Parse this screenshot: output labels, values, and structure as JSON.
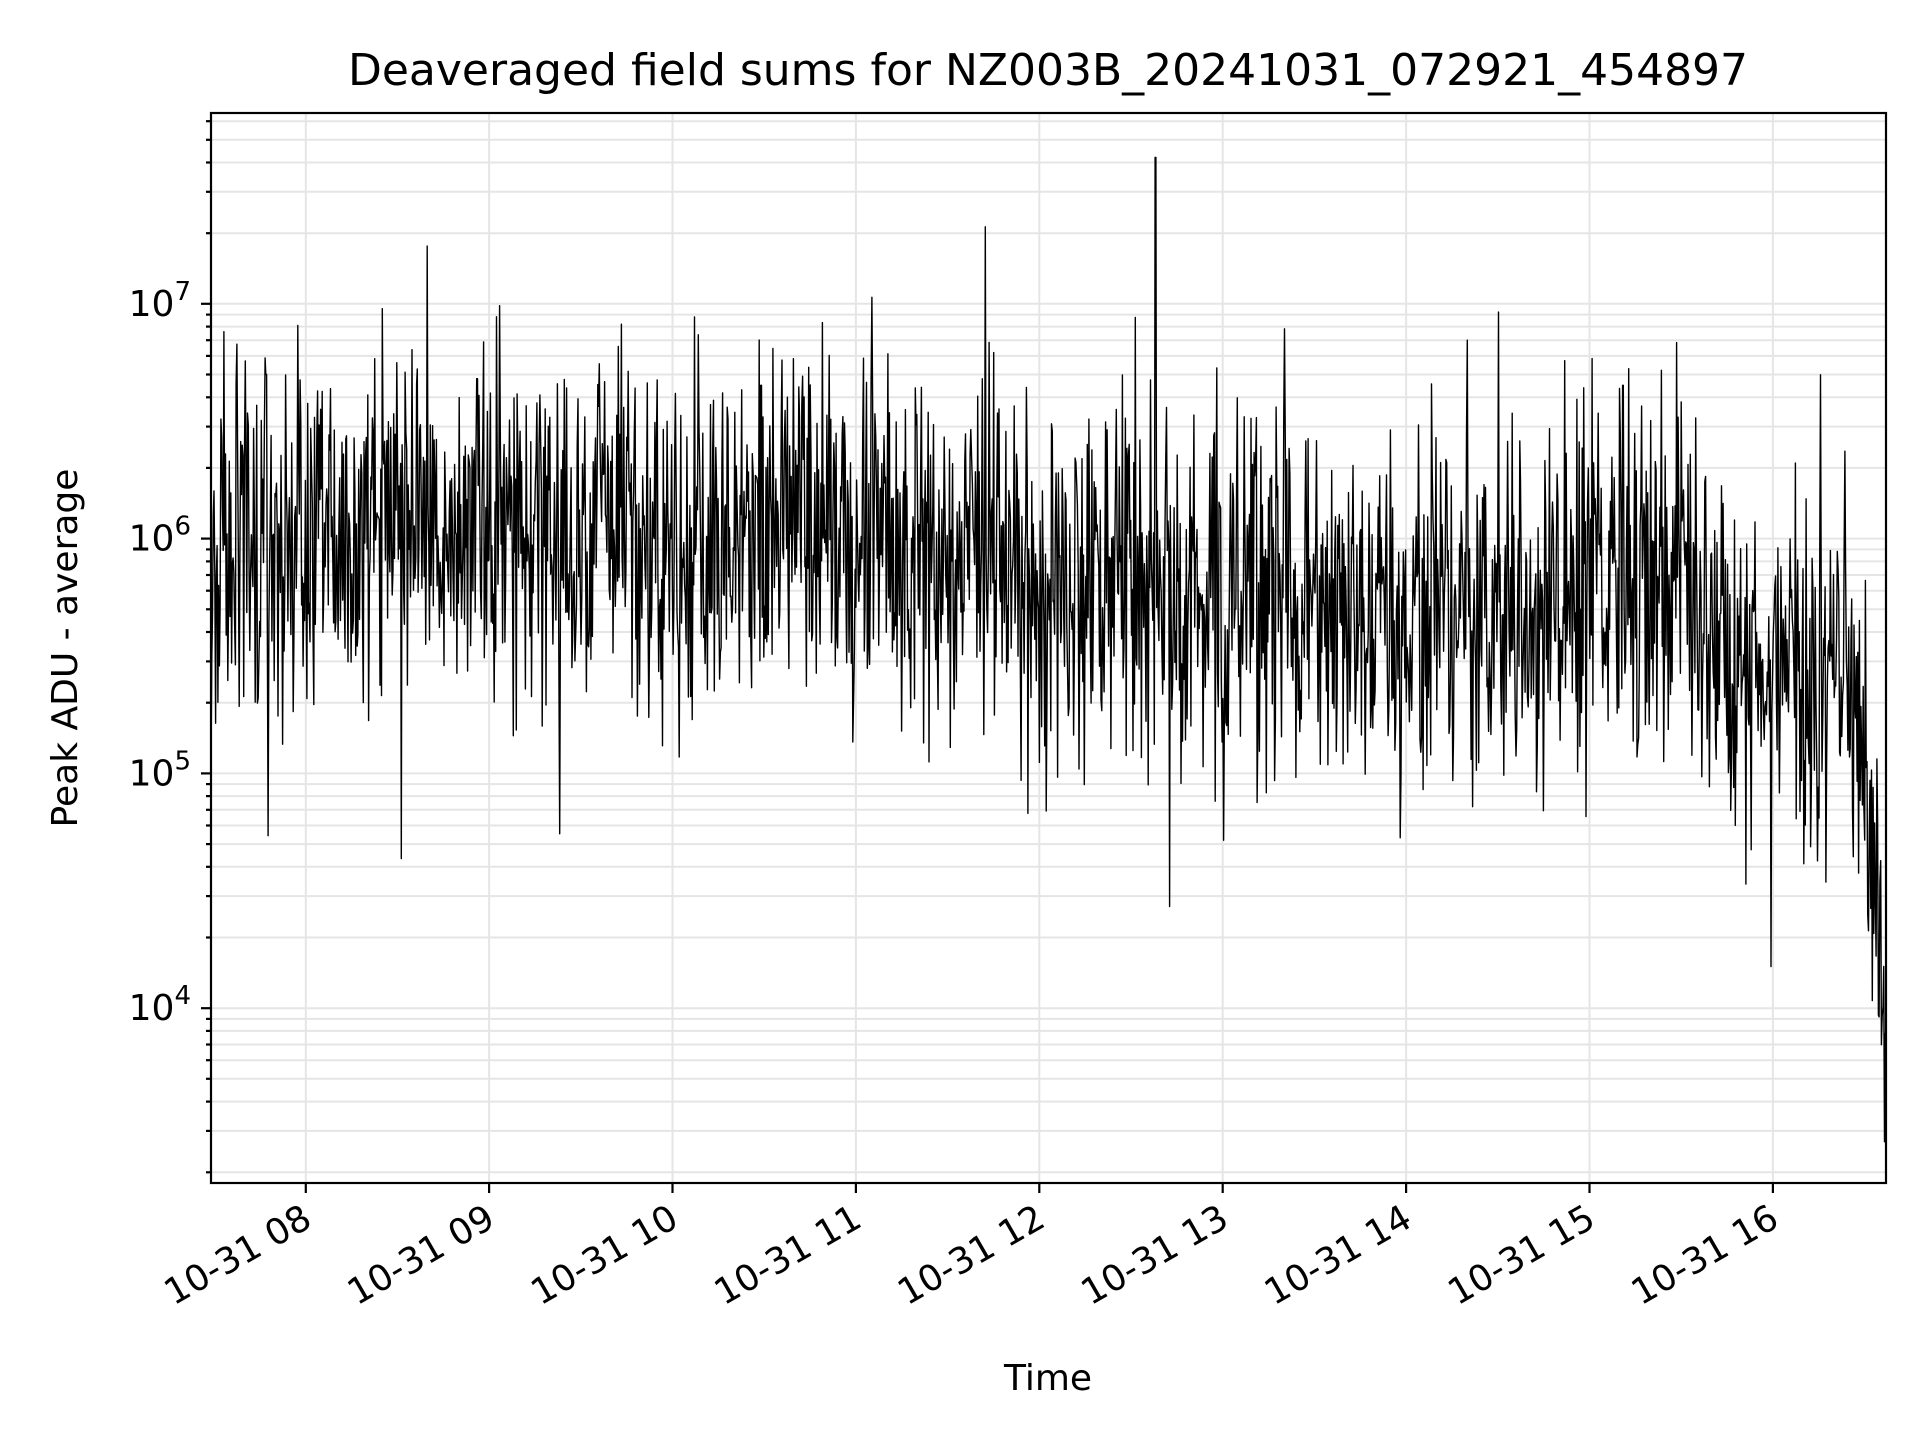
{
  "chart_data": {
    "type": "line",
    "title": "Deaveraged field sums for NZ003B_20241031_072921_454897",
    "xlabel": "Time",
    "ylabel": "Peak ADU - average",
    "yscale": "log",
    "grid": true,
    "xlim": [
      "2024-10-31 07:29",
      "2024-10-31 16:37"
    ],
    "ylim": [
      1800,
      65000000
    ],
    "xtick_labels": [
      "10-31 08",
      "10-31 09",
      "10-31 10",
      "10-31 11",
      "10-31 12",
      "10-31 13",
      "10-31 14",
      "10-31 15",
      "10-31 16"
    ],
    "ytick_labels": [
      {
        "base": "10",
        "exp": "4"
      },
      {
        "base": "10",
        "exp": "5"
      },
      {
        "base": "10",
        "exp": "6"
      },
      {
        "base": "10",
        "exp": "7"
      }
    ],
    "series": [
      {
        "color": "#000000",
        "x": [
          "07:29",
          "07:45",
          "08:00",
          "08:15",
          "08:30",
          "08:45",
          "09:00",
          "09:15",
          "09:30",
          "09:45",
          "10:00",
          "10:15",
          "10:30",
          "10:45",
          "11:00",
          "11:15",
          "11:30",
          "11:45",
          "12:00",
          "12:15",
          "12:30",
          "12:38",
          "12:45",
          "13:00",
          "13:15",
          "13:30",
          "13:45",
          "14:00",
          "14:15",
          "14:20",
          "14:30",
          "14:45",
          "15:00",
          "15:15",
          "15:30",
          "15:45",
          "16:00",
          "16:15",
          "16:25",
          "16:30",
          "16:35",
          "16:37"
        ],
        "y": [
          900000,
          1000000,
          1300000,
          900000,
          1500000,
          1000000,
          1600000,
          1000000,
          950000,
          1100000,
          1000000,
          1000000,
          1100000,
          1400000,
          900000,
          800000,
          700000,
          1100000,
          500000,
          700000,
          800000,
          600000,
          600000,
          550000,
          600000,
          550000,
          500000,
          450000,
          600000,
          650000,
          500000,
          500000,
          700000,
          650000,
          900000,
          250000,
          300000,
          250000,
          280000,
          70000,
          20000,
          4000
        ]
      }
    ],
    "spikes": [
      {
        "x": "12:38",
        "y": 42000000
      },
      {
        "x": "14:20",
        "y": 7000000
      },
      {
        "x": "07:47",
        "y": 5000000
      },
      {
        "x": "08:56",
        "y": 4800000
      },
      {
        "x": "10:29",
        "y": 4500000
      },
      {
        "x": "15:11",
        "y": 4500000
      }
    ]
  }
}
